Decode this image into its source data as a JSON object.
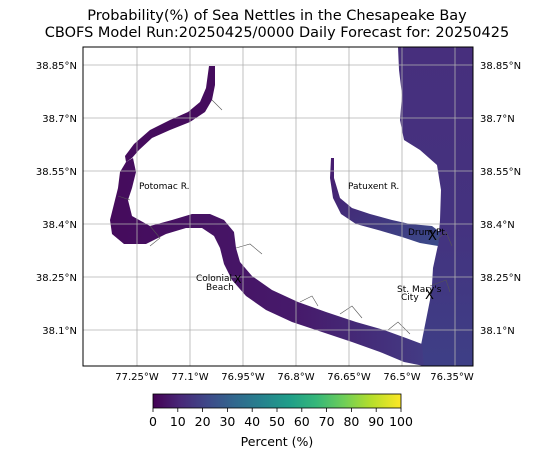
{
  "title_line1": "Probability(%) of Sea Nettles in the Chesapeake Bay",
  "title_line2": "CBOFS Model Run:20250425/0000 Daily Forecast for: 20250425",
  "lat_ticks": [
    "38.85°N",
    "38.7°N",
    "38.55°N",
    "38.4°N",
    "38.25°N",
    "38.1°N"
  ],
  "lon_ticks": [
    "77.25°W",
    "77.1°W",
    "76.95°W",
    "76.8°W",
    "76.65°W",
    "76.5°W",
    "76.35°W"
  ],
  "places": {
    "potomac": "Potomac R.",
    "patuxent": "Patuxent R.",
    "drum": "Drum Pt.",
    "colonial_1": "Colonial",
    "colonial_2": "Beach",
    "stmarys_1": "St. Mary's",
    "stmarys_2": "City"
  },
  "markers": {
    "drum": "X",
    "stmarys": "X",
    "colonial": "X"
  },
  "colorbar": {
    "label": "Percent (%)",
    "ticks": [
      "0",
      "10",
      "20",
      "30",
      "40",
      "50",
      "60",
      "70",
      "80",
      "90",
      "100"
    ],
    "colormap": "viridis",
    "stops": [
      "#440154",
      "#482878",
      "#3e4989",
      "#31688e",
      "#26828e",
      "#1f9e89",
      "#35b779",
      "#6ece58",
      "#b5de2b",
      "#fde725"
    ]
  }
}
